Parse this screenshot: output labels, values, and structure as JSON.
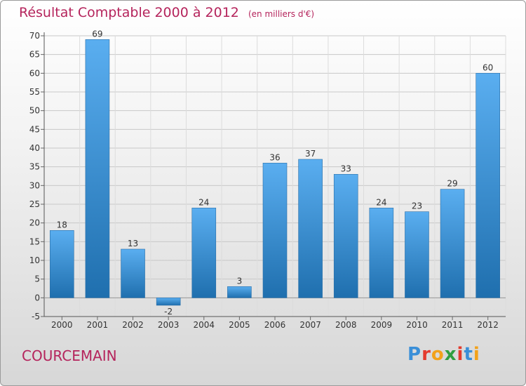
{
  "header": {
    "title": "Résultat Comptable 2000 à 2012",
    "unit": "(en milliers d'€)"
  },
  "footer": {
    "town": "COURCEMAIN",
    "logo_letters": [
      "P",
      "r",
      "o",
      "x",
      "i",
      "t",
      "i"
    ]
  },
  "colors": {
    "title": "#b5245c",
    "bar_top": "#5aaef0",
    "bar_bottom": "#1f6fae",
    "logo": [
      "#3a8fd8",
      "#e43b2e",
      "#f2a21b",
      "#2f9e3f",
      "#e43b2e",
      "#3a8fd8",
      "#f2a21b"
    ]
  },
  "chart_data": {
    "type": "bar",
    "title": "Résultat Comptable 2000 à 2012",
    "categories": [
      "2000",
      "2001",
      "2002",
      "2003",
      "2004",
      "2005",
      "2006",
      "2007",
      "2008",
      "2009",
      "2010",
      "2011",
      "2012"
    ],
    "values": [
      18,
      69,
      13,
      -2,
      24,
      3,
      36,
      37,
      33,
      24,
      23,
      29,
      60
    ],
    "data_labels": [
      "18",
      "69",
      "13",
      "-2",
      "24",
      "3",
      "36",
      "37",
      "33",
      "24",
      "23",
      "29",
      "60"
    ],
    "y_ticks": [
      -5,
      0,
      5,
      10,
      15,
      20,
      25,
      30,
      35,
      40,
      45,
      50,
      55,
      60,
      65,
      70
    ],
    "ylim": [
      -5,
      70
    ],
    "grid": true,
    "legend": "none"
  }
}
